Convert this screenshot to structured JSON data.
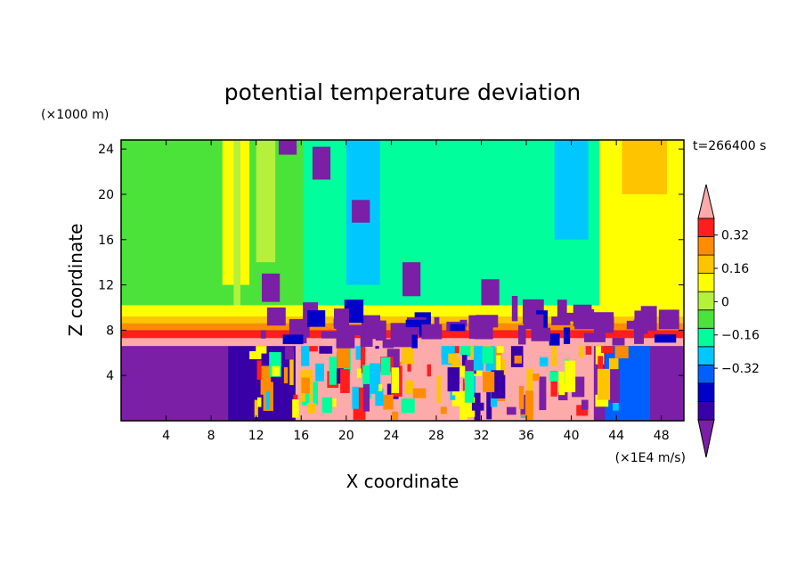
{
  "chart_data": {
    "type": "heatmap",
    "title": "potential temperature deviation",
    "xlabel": "X coordinate",
    "ylabel": "Z coordinate",
    "x_units": "(×1E4 m/s)",
    "y_units": "(×1000 m)",
    "time_label": "t=266400 s",
    "xlim": [
      0,
      50
    ],
    "ylim": [
      0,
      24.8
    ],
    "x_ticks": [
      4,
      8,
      12,
      16,
      20,
      24,
      28,
      32,
      36,
      40,
      44,
      48
    ],
    "y_ticks": [
      4,
      8,
      12,
      16,
      20,
      24
    ],
    "colorbar": {
      "levels": [
        -0.48,
        -0.4,
        -0.32,
        -0.24,
        -0.16,
        -0.08,
        0,
        0.08,
        0.16,
        0.24,
        0.32,
        0.4
      ],
      "labels": [
        "0.32",
        "0.16",
        "0",
        "−0.16",
        "−0.32"
      ],
      "label_values": [
        0.32,
        0.16,
        0,
        -0.16,
        -0.32
      ],
      "colors": [
        "#7a1fa6",
        "#3a00a8",
        "#0000c8",
        "#0060ff",
        "#00c8ff",
        "#00ff9c",
        "#4be23a",
        "#b4f03c",
        "#ffff00",
        "#ffc400",
        "#ff8c00",
        "#ff1e1e",
        "#fdaaaa"
      ],
      "extend": "both",
      "placement": "right"
    }
  }
}
